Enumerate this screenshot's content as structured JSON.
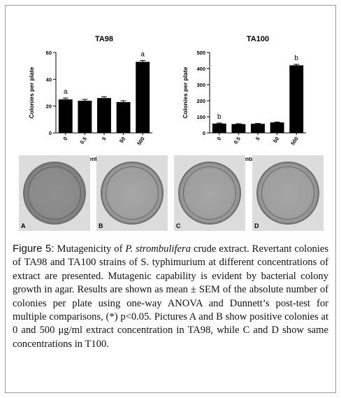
{
  "figure": {
    "charts": [
      {
        "id": "ta98",
        "title": "TA98"
      },
      {
        "id": "ta100",
        "title": "TA100"
      }
    ],
    "plates": [
      {
        "label": "A",
        "tone": "dark"
      },
      {
        "label": "B",
        "tone": "light"
      },
      {
        "label": "C",
        "tone": "light"
      },
      {
        "label": "D",
        "tone": "light"
      }
    ],
    "caption": {
      "label": "Figure 5:",
      "text_1": " Mutagenicity of ",
      "species": "P. strombulifera",
      "text_2": " crude extract. Revertant colonies of TA98 and TA100 strains of S. typhimurium at different concentrations of extract are presented. Mutagenic capability is evident by bacterial colony growth in agar. Results are shown as mean ± SEM of the absolute number of colonies per plate using one-way ANOVA and Dunnett’s post-test for multiple comparisons, (*) p<0.05. Pictures A and B show positive colonies at 0 and 500 μg/ml extract concentration in TA98, while C and D show same concentrations in T100."
    }
  },
  "chart_data": [
    {
      "type": "bar",
      "title": "TA98",
      "categories": [
        "0",
        "0.5",
        "5",
        "50",
        "500"
      ],
      "values": [
        25,
        24,
        26,
        23,
        53
      ],
      "errors": [
        1,
        1,
        1,
        1,
        1
      ],
      "annotations": [
        "a",
        "",
        "",
        "",
        "a"
      ],
      "xlabel": "Concentration (μg/ml)",
      "ylabel": "Colonies per plate",
      "ylim": [
        0,
        60
      ],
      "yticks": [
        0,
        20,
        40,
        60
      ],
      "bar_color": "#000000",
      "grid": false
    },
    {
      "type": "bar",
      "title": "TA100",
      "categories": [
        "0",
        "0.5",
        "5",
        "50",
        "500"
      ],
      "values": [
        58,
        55,
        57,
        65,
        420
      ],
      "errors": [
        3,
        2,
        2,
        3,
        6
      ],
      "annotations": [
        "b",
        "",
        "",
        "",
        "b"
      ],
      "xlabel": "Concentration (μg/ml)",
      "ylabel": "Colonies per plate",
      "ylim": [
        0,
        500
      ],
      "yticks": [
        0,
        100,
        200,
        300,
        400,
        500
      ],
      "bar_color": "#000000",
      "grid": false
    }
  ]
}
